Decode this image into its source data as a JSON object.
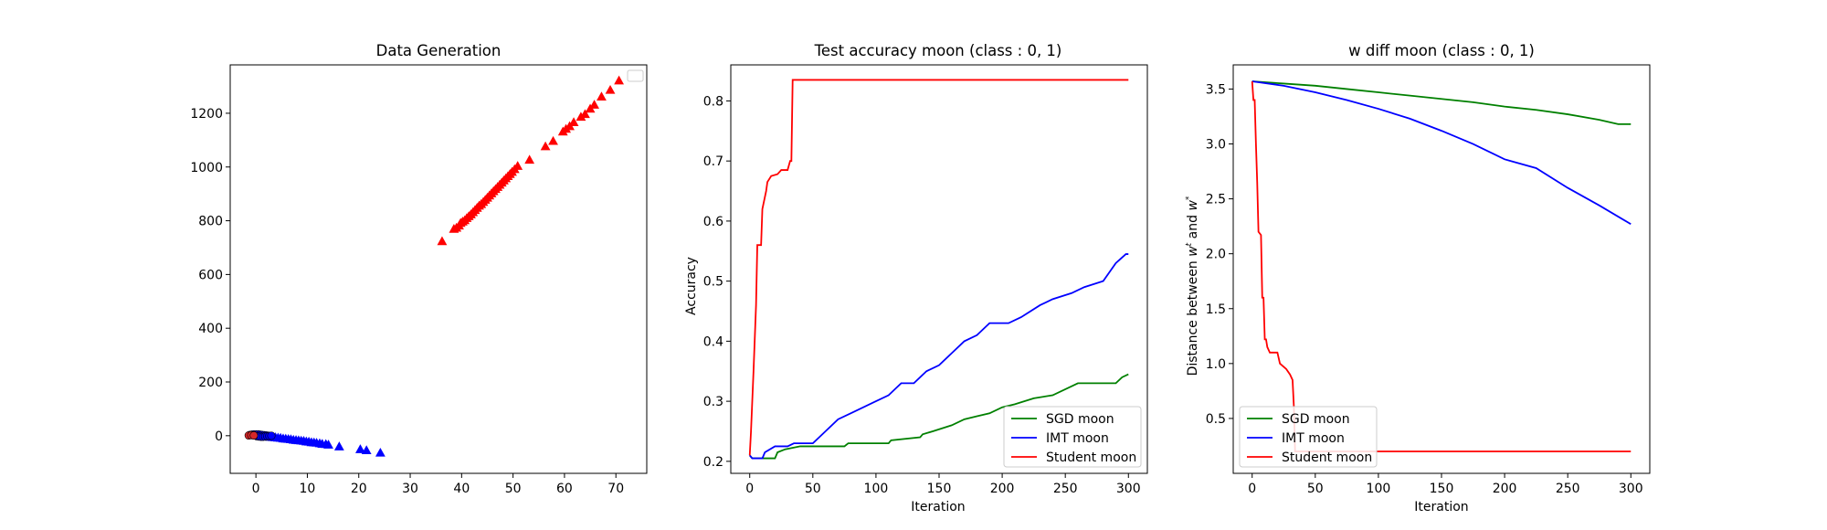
{
  "colors": {
    "sgd": "#008000",
    "imt": "#0000ff",
    "student": "#ff0000",
    "circle_fill": "#d62728"
  },
  "chart_data": [
    {
      "type": "scatter",
      "title": "Data Generation",
      "xlabel": "",
      "ylabel": "",
      "xlim": [
        -5,
        76
      ],
      "ylim": [
        -140,
        1380
      ],
      "xticks": [
        0,
        10,
        20,
        30,
        40,
        50,
        60,
        70
      ],
      "yticks": [
        0,
        200,
        400,
        600,
        800,
        1000,
        1200
      ],
      "xtick_labels": [
        "0",
        "10",
        "20",
        "30",
        "40",
        "50",
        "60",
        "70"
      ],
      "ytick_labels": [
        "0",
        "200",
        "400",
        "600",
        "800",
        "1000",
        "1200"
      ],
      "legend": {
        "position": "upper-right",
        "entries": []
      },
      "series": [
        {
          "color": "#ff0000",
          "marker": "triangle",
          "points": [
            [
              36.2,
              722
            ],
            [
              38.5,
              768
            ],
            [
              39.0,
              772
            ],
            [
              39.5,
              780
            ],
            [
              39.8,
              790
            ],
            [
              40.2,
              795
            ],
            [
              40.6,
              800
            ],
            [
              41.0,
              808
            ],
            [
              41.4,
              815
            ],
            [
              41.8,
              822
            ],
            [
              42.2,
              830
            ],
            [
              42.6,
              838
            ],
            [
              43.0,
              846
            ],
            [
              43.4,
              854
            ],
            [
              43.8,
              860
            ],
            [
              44.2,
              868
            ],
            [
              44.6,
              876
            ],
            [
              45.0,
              884
            ],
            [
              45.4,
              892
            ],
            [
              45.8,
              900
            ],
            [
              46.2,
              908
            ],
            [
              46.6,
              916
            ],
            [
              47.0,
              924
            ],
            [
              47.4,
              932
            ],
            [
              47.8,
              940
            ],
            [
              48.2,
              948
            ],
            [
              48.6,
              956
            ],
            [
              49.0,
              964
            ],
            [
              49.4,
              972
            ],
            [
              49.8,
              980
            ],
            [
              50.3,
              990
            ],
            [
              50.9,
              1002
            ],
            [
              53.2,
              1025
            ],
            [
              56.3,
              1075
            ],
            [
              57.8,
              1095
            ],
            [
              59.7,
              1130
            ],
            [
              60.3,
              1140
            ],
            [
              61.0,
              1150
            ],
            [
              61.8,
              1165
            ],
            [
              63.2,
              1185
            ],
            [
              64.0,
              1195
            ],
            [
              65.0,
              1215
            ],
            [
              65.8,
              1230
            ],
            [
              67.2,
              1260
            ],
            [
              68.9,
              1285
            ],
            [
              70.6,
              1320
            ]
          ]
        },
        {
          "color": "#0000ff",
          "marker": "triangle",
          "points": [
            [
              0.3,
              -1
            ],
            [
              0.8,
              -2
            ],
            [
              1.3,
              -3
            ],
            [
              1.8,
              -4
            ],
            [
              2.3,
              -5
            ],
            [
              2.8,
              -6
            ],
            [
              3.3,
              -7
            ],
            [
              3.8,
              -8
            ],
            [
              4.3,
              -9
            ],
            [
              4.8,
              -10
            ],
            [
              5.3,
              -12
            ],
            [
              5.8,
              -13
            ],
            [
              6.3,
              -14
            ],
            [
              6.8,
              -15
            ],
            [
              7.3,
              -17
            ],
            [
              7.8,
              -18
            ],
            [
              8.3,
              -19
            ],
            [
              8.8,
              -20
            ],
            [
              9.3,
              -21
            ],
            [
              9.8,
              -23
            ],
            [
              10.3,
              -24
            ],
            [
              10.8,
              -26
            ],
            [
              11.3,
              -27
            ],
            [
              11.8,
              -28
            ],
            [
              12.4,
              -30
            ],
            [
              12.9,
              -32
            ],
            [
              13.6,
              -33
            ],
            [
              14.1,
              -35
            ],
            [
              16.2,
              -42
            ],
            [
              20.3,
              -52
            ],
            [
              21.5,
              -56
            ],
            [
              24.2,
              -65
            ]
          ]
        },
        {
          "color": "#0000ff",
          "marker": "circle",
          "points": [
            [
              -1.2,
              3
            ],
            [
              -0.8,
              4
            ],
            [
              -0.4,
              5
            ],
            [
              0,
              5
            ],
            [
              0.4,
              5
            ],
            [
              0.8,
              4
            ],
            [
              1.2,
              3
            ],
            [
              1.6,
              2
            ],
            [
              2.0,
              1
            ],
            [
              2.4,
              0
            ],
            [
              0.2,
              -2
            ],
            [
              0.6,
              -3
            ],
            [
              1.0,
              -4
            ],
            [
              1.4,
              -4
            ],
            [
              1.8,
              -3
            ],
            [
              2.2,
              -2
            ],
            [
              2.6,
              -1
            ],
            [
              3.0,
              0
            ]
          ]
        },
        {
          "color": "#d62728",
          "marker": "circle",
          "points": [
            [
              -1.4,
              1
            ],
            [
              -0.9,
              2
            ],
            [
              -0.4,
              1
            ]
          ]
        }
      ]
    },
    {
      "type": "line",
      "title": "Test accuracy moon (class : 0, 1)",
      "xlabel": "Iteration",
      "ylabel": "Accuracy",
      "xlim": [
        -15,
        315
      ],
      "ylim": [
        0.18,
        0.86
      ],
      "xticks": [
        0,
        50,
        100,
        150,
        200,
        250,
        300
      ],
      "yticks": [
        0.2,
        0.3,
        0.4,
        0.5,
        0.6,
        0.7,
        0.8
      ],
      "xtick_labels": [
        "0",
        "50",
        "100",
        "150",
        "200",
        "250",
        "300"
      ],
      "ytick_labels": [
        "0.2",
        "0.3",
        "0.4",
        "0.5",
        "0.6",
        "0.7",
        "0.8"
      ],
      "legend": {
        "position": "lower-right"
      },
      "series": [
        {
          "name": "SGD moon",
          "color": "#008000",
          "points": [
            [
              0,
              0.21
            ],
            [
              2,
              0.205
            ],
            [
              20,
              0.205
            ],
            [
              22,
              0.215
            ],
            [
              28,
              0.22
            ],
            [
              40,
              0.225
            ],
            [
              75,
              0.225
            ],
            [
              78,
              0.23
            ],
            [
              110,
              0.23
            ],
            [
              112,
              0.235
            ],
            [
              135,
              0.24
            ],
            [
              137,
              0.245
            ],
            [
              145,
              0.25
            ],
            [
              160,
              0.26
            ],
            [
              170,
              0.27
            ],
            [
              180,
              0.275
            ],
            [
              190,
              0.28
            ],
            [
              200,
              0.29
            ],
            [
              210,
              0.295
            ],
            [
              225,
              0.305
            ],
            [
              240,
              0.31
            ],
            [
              260,
              0.33
            ],
            [
              290,
              0.33
            ],
            [
              295,
              0.34
            ],
            [
              300,
              0.345
            ]
          ]
        },
        {
          "name": "IMT moon",
          "color": "#0000ff",
          "points": [
            [
              0,
              0.21
            ],
            [
              2,
              0.205
            ],
            [
              10,
              0.205
            ],
            [
              12,
              0.215
            ],
            [
              20,
              0.225
            ],
            [
              30,
              0.225
            ],
            [
              35,
              0.23
            ],
            [
              50,
              0.23
            ],
            [
              60,
              0.25
            ],
            [
              70,
              0.27
            ],
            [
              80,
              0.28
            ],
            [
              90,
              0.29
            ],
            [
              100,
              0.3
            ],
            [
              110,
              0.31
            ],
            [
              120,
              0.33
            ],
            [
              130,
              0.33
            ],
            [
              140,
              0.35
            ],
            [
              150,
              0.36
            ],
            [
              160,
              0.38
            ],
            [
              170,
              0.4
            ],
            [
              180,
              0.41
            ],
            [
              190,
              0.43
            ],
            [
              205,
              0.43
            ],
            [
              215,
              0.44
            ],
            [
              230,
              0.46
            ],
            [
              240,
              0.47
            ],
            [
              255,
              0.48
            ],
            [
              265,
              0.49
            ],
            [
              280,
              0.5
            ],
            [
              290,
              0.53
            ],
            [
              298,
              0.545
            ],
            [
              300,
              0.545
            ]
          ]
        },
        {
          "name": "Student moon",
          "color": "#ff0000",
          "points": [
            [
              0,
              0.21
            ],
            [
              1,
              0.25
            ],
            [
              3,
              0.35
            ],
            [
              5,
              0.46
            ],
            [
              6,
              0.56
            ],
            [
              9,
              0.56
            ],
            [
              10,
              0.62
            ],
            [
              13,
              0.65
            ],
            [
              14,
              0.665
            ],
            [
              17,
              0.675
            ],
            [
              22,
              0.678
            ],
            [
              25,
              0.685
            ],
            [
              30,
              0.685
            ],
            [
              32,
              0.7
            ],
            [
              33,
              0.7
            ],
            [
              34,
              0.835
            ],
            [
              300,
              0.835
            ]
          ]
        }
      ]
    },
    {
      "type": "line",
      "title": "w diff moon (class : 0, 1)",
      "xlabel": "Iteration",
      "ylabel": "Distance between w^t and w^*",
      "xlim": [
        -15,
        315
      ],
      "ylim": [
        0.0,
        3.72
      ],
      "xticks": [
        0,
        50,
        100,
        150,
        200,
        250,
        300
      ],
      "yticks": [
        0.5,
        1.0,
        1.5,
        2.0,
        2.5,
        3.0,
        3.5
      ],
      "xtick_labels": [
        "0",
        "50",
        "100",
        "150",
        "200",
        "250",
        "300"
      ],
      "ytick_labels": [
        "0.5",
        "1.0",
        "1.5",
        "2.0",
        "2.5",
        "3.0",
        "3.5"
      ],
      "legend": {
        "position": "lower-left"
      },
      "series": [
        {
          "name": "SGD moon",
          "color": "#008000",
          "points": [
            [
              0,
              3.57
            ],
            [
              25,
              3.55
            ],
            [
              50,
              3.53
            ],
            [
              75,
              3.5
            ],
            [
              100,
              3.47
            ],
            [
              125,
              3.44
            ],
            [
              150,
              3.41
            ],
            [
              175,
              3.38
            ],
            [
              200,
              3.34
            ],
            [
              225,
              3.31
            ],
            [
              250,
              3.27
            ],
            [
              275,
              3.22
            ],
            [
              290,
              3.18
            ],
            [
              300,
              3.18
            ]
          ]
        },
        {
          "name": "IMT moon",
          "color": "#0000ff",
          "points": [
            [
              0,
              3.57
            ],
            [
              25,
              3.53
            ],
            [
              50,
              3.47
            ],
            [
              75,
              3.4
            ],
            [
              100,
              3.32
            ],
            [
              125,
              3.23
            ],
            [
              150,
              3.12
            ],
            [
              175,
              3.0
            ],
            [
              200,
              2.86
            ],
            [
              225,
              2.78
            ],
            [
              250,
              2.6
            ],
            [
              275,
              2.44
            ],
            [
              300,
              2.27
            ]
          ]
        },
        {
          "name": "Student moon",
          "color": "#ff0000",
          "points": [
            [
              0,
              3.57
            ],
            [
              1,
              3.4
            ],
            [
              2,
              3.4
            ],
            [
              3,
              3.0
            ],
            [
              4,
              2.65
            ],
            [
              5,
              2.2
            ],
            [
              7,
              2.17
            ],
            [
              8,
              1.6
            ],
            [
              9,
              1.6
            ],
            [
              10,
              1.22
            ],
            [
              11,
              1.22
            ],
            [
              12,
              1.15
            ],
            [
              14,
              1.1
            ],
            [
              20,
              1.1
            ],
            [
              22,
              1.0
            ],
            [
              27,
              0.95
            ],
            [
              30,
              0.9
            ],
            [
              32,
              0.85
            ],
            [
              33,
              0.62
            ],
            [
              34,
              0.2
            ],
            [
              300,
              0.2
            ]
          ]
        }
      ]
    }
  ]
}
